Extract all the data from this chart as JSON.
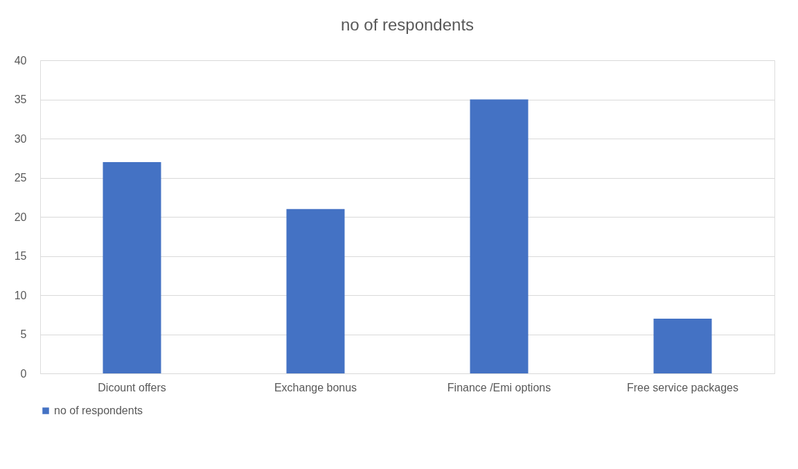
{
  "chart_data": {
    "type": "bar",
    "title": "no of respondents",
    "categories": [
      "Dicount offers",
      "Exchange bonus",
      "Finance /Emi options",
      "Free service packages"
    ],
    "series": [
      {
        "name": "no of respondents",
        "color": "#4472c4",
        "values": [
          27,
          21,
          35,
          7
        ]
      }
    ],
    "ylim": [
      0,
      40
    ],
    "yticks": [
      0,
      5,
      10,
      15,
      20,
      25,
      30,
      35,
      40
    ],
    "grid": "y",
    "legend": "bottom"
  }
}
